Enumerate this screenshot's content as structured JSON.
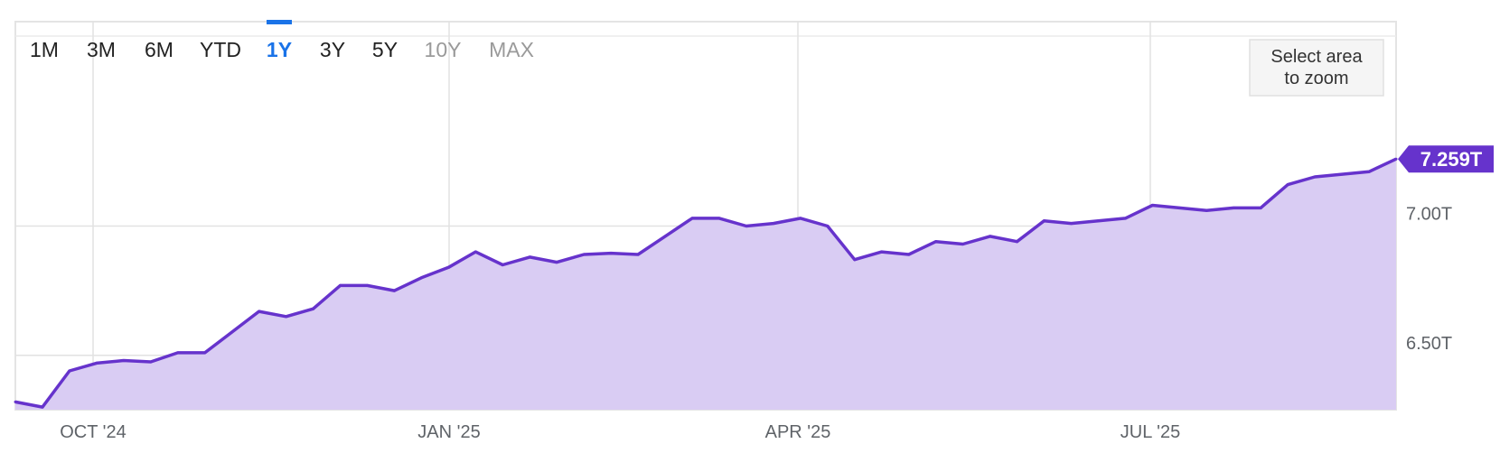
{
  "range_selector": {
    "buttons": [
      {
        "label": "1M",
        "state": "normal"
      },
      {
        "label": "3M",
        "state": "normal"
      },
      {
        "label": "6M",
        "state": "normal"
      },
      {
        "label": "YTD",
        "state": "normal"
      },
      {
        "label": "1Y",
        "state": "active"
      },
      {
        "label": "3Y",
        "state": "normal"
      },
      {
        "label": "5Y",
        "state": "normal"
      },
      {
        "label": "10Y",
        "state": "disabled"
      },
      {
        "label": "MAX",
        "state": "disabled"
      }
    ]
  },
  "zoom_hint": {
    "line1": "Select area",
    "line2": "to zoom"
  },
  "last_value_label": "7.259T",
  "colors": {
    "line": "#6633cc",
    "fill": "#d9ccf3",
    "active": "#1a73e8",
    "grid": "#e2e2e2"
  },
  "chart_data": {
    "type": "area",
    "title": "",
    "xlabel": "",
    "ylabel": "",
    "x_ticks": [
      "OCT '24",
      "JAN '25",
      "APR '25",
      "JUL '25"
    ],
    "y_ticks": [
      "6.50T",
      "7.00T"
    ],
    "y_tick_values": [
      6.5,
      7.0
    ],
    "ylim": [
      6.29,
      7.79
    ],
    "grid": true,
    "legend": "none",
    "series": [
      {
        "values": [
          6.32,
          6.3,
          6.44,
          6.47,
          6.48,
          6.475,
          6.51,
          6.51,
          6.59,
          6.67,
          6.65,
          6.68,
          6.77,
          6.77,
          6.75,
          6.8,
          6.84,
          6.9,
          6.85,
          6.88,
          6.86,
          6.89,
          6.895,
          6.89,
          6.96,
          7.03,
          7.03,
          7.0,
          7.01,
          7.03,
          7.0,
          6.87,
          6.9,
          6.89,
          6.94,
          6.93,
          6.96,
          6.94,
          7.02,
          7.01,
          7.02,
          7.03,
          7.08,
          7.07,
          7.06,
          7.07,
          7.07,
          7.16,
          7.19,
          7.2,
          7.21,
          7.259
        ]
      }
    ]
  }
}
